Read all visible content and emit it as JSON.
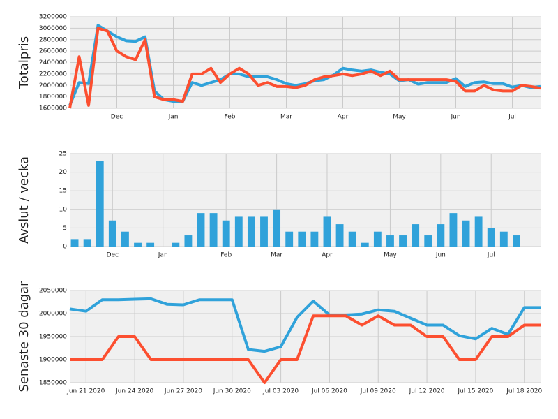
{
  "chart_data": [
    {
      "type": "line",
      "ylabel": "Totalpris",
      "categories": [
        null,
        null,
        null,
        null,
        null,
        "Dec",
        null,
        null,
        null,
        null,
        null,
        "Jan",
        null,
        null,
        null,
        null,
        null,
        "Feb",
        null,
        null,
        null,
        null,
        null,
        "Mar",
        null,
        null,
        null,
        null,
        null,
        "Apr",
        null,
        null,
        null,
        null,
        null,
        "May",
        null,
        null,
        null,
        null,
        null,
        "Jun",
        null,
        null,
        null,
        null,
        null,
        "Jul",
        null,
        null,
        null
      ],
      "series": [
        {
          "color": "#30a2da",
          "values": [
            1650000,
            2050000,
            2030000,
            3050000,
            2950000,
            2850000,
            2780000,
            2770000,
            2850000,
            1900000,
            1750000,
            1720000,
            1720000,
            2050000,
            2000000,
            2050000,
            2100000,
            2200000,
            2200000,
            2150000,
            2150000,
            2150000,
            2100000,
            2030000,
            2000000,
            2030000,
            2080000,
            2100000,
            2180000,
            2300000,
            2270000,
            2250000,
            2270000,
            2230000,
            2200000,
            2080000,
            2100000,
            2020000,
            2050000,
            2050000,
            2050000,
            2120000,
            1980000,
            2050000,
            2060000,
            2030000,
            2030000,
            1970000,
            2000000,
            1960000,
            1980000
          ]
        },
        {
          "color": "#fc4f30",
          "values": [
            1600000,
            2500000,
            1650000,
            3000000,
            2950000,
            2600000,
            2500000,
            2450000,
            2800000,
            1800000,
            1750000,
            1750000,
            1720000,
            2200000,
            2200000,
            2300000,
            2050000,
            2200000,
            2300000,
            2200000,
            2000000,
            2050000,
            1980000,
            1980000,
            1960000,
            2000000,
            2100000,
            2150000,
            2170000,
            2200000,
            2170000,
            2200000,
            2250000,
            2170000,
            2250000,
            2100000,
            2100000,
            2100000,
            2100000,
            2100000,
            2100000,
            2070000,
            1900000,
            1900000,
            2000000,
            1920000,
            1900000,
            1900000,
            2000000,
            1980000,
            1950000
          ]
        }
      ],
      "ylim": [
        1600000,
        3200000
      ],
      "yticks": [
        1600000,
        1800000,
        2000000,
        2200000,
        2400000,
        2600000,
        2800000,
        3000000,
        3200000
      ],
      "grid": true
    },
    {
      "type": "bar",
      "ylabel": "Avslut / vecka",
      "categories": [
        null,
        null,
        null,
        "Dec",
        null,
        null,
        null,
        "Jan",
        null,
        null,
        null,
        null,
        "Feb",
        null,
        null,
        null,
        "Mar",
        null,
        null,
        null,
        "Apr",
        null,
        null,
        null,
        null,
        "May",
        null,
        null,
        null,
        "Jun",
        null,
        null,
        null,
        "Jul",
        null,
        null
      ],
      "values": [
        2,
        2,
        23,
        7,
        4,
        1,
        1,
        0,
        1,
        3,
        9,
        9,
        7,
        8,
        8,
        8,
        10,
        4,
        4,
        4,
        8,
        6,
        4,
        1,
        4,
        3,
        3,
        6,
        3,
        6,
        9,
        7,
        8,
        5,
        4,
        3
      ],
      "color": "#30a2da",
      "ylim": [
        0,
        25
      ],
      "yticks": [
        0,
        5,
        10,
        15,
        20,
        25
      ],
      "grid": true
    },
    {
      "type": "line",
      "ylabel": "Senaste 30 dagar",
      "categories": [
        null,
        "Jun 21 2020",
        null,
        null,
        "Jun 24 2020",
        null,
        null,
        "Jun 27 2020",
        null,
        null,
        "Jun 30 2020",
        null,
        null,
        "Jul 03 2020",
        null,
        null,
        "Jul 06 2020",
        null,
        null,
        "Jul 09 2020",
        null,
        null,
        "Jul 12 2020",
        null,
        null,
        "Jul 15 2020",
        null,
        null,
        "Jul 18 2020",
        null
      ],
      "series": [
        {
          "color": "#30a2da",
          "values": [
            2010000,
            2005000,
            2030000,
            2030000,
            2031000,
            2032000,
            2020000,
            2019000,
            2030000,
            2030000,
            2030000,
            1922000,
            1918000,
            1928000,
            1992000,
            2027000,
            1997000,
            1997000,
            1999000,
            2008000,
            2005000,
            1990000,
            1975000,
            1975000,
            1952000,
            1945000,
            1968000,
            1955000,
            2013000,
            2013000
          ]
        },
        {
          "color": "#fc4f30",
          "values": [
            1900000,
            1900000,
            1900000,
            1950000,
            1950000,
            1900000,
            1900000,
            1900000,
            1900000,
            1900000,
            1900000,
            1900000,
            1850000,
            1900000,
            1900000,
            1995000,
            1995000,
            1995000,
            1975000,
            1995000,
            1975000,
            1975000,
            1950000,
            1950000,
            1900000,
            1900000,
            1950000,
            1950000,
            1975000,
            1975000
          ]
        }
      ],
      "ylim": [
        1850000,
        2050000
      ],
      "yticks": [
        1850000,
        1900000,
        1950000,
        2000000,
        2050000
      ],
      "grid": true
    }
  ]
}
